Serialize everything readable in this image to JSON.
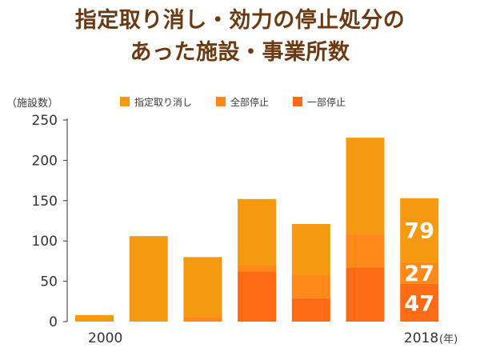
{
  "title": {
    "line1": "指定取り消し・効力の停止処分の",
    "line2": "あった施設・事業所数"
  },
  "colors": {
    "title": "#6b3a12",
    "revocation": "#f59a10",
    "full_suspension": "#ff8a1a",
    "partial_suspension": "#ff6a14",
    "axis": "#333333"
  },
  "legend": [
    {
      "label": "指定取り消し",
      "color": "#f59a10"
    },
    {
      "label": "全部停止",
      "color": "#ff8a1a"
    },
    {
      "label": "一部停止",
      "color": "#ff6a14"
    }
  ],
  "chart_data": {
    "type": "bar",
    "stacked": true,
    "ylabel": "（施設数）",
    "xunit": "(年)",
    "ylim": [
      0,
      250
    ],
    "yticks": [
      0,
      50,
      100,
      150,
      200,
      250
    ],
    "x_tick_labels": {
      "first": "2000",
      "last": "2018"
    },
    "categories": [
      "2000",
      "",
      "",
      "",
      "",
      "",
      "2018"
    ],
    "series": [
      {
        "name": "一部停止",
        "color": "#ff6a14",
        "values": [
          0,
          0,
          0,
          62,
          29,
          67,
          47
        ]
      },
      {
        "name": "全部停止",
        "color": "#ff8a1a",
        "values": [
          0,
          0,
          6,
          8,
          29,
          42,
          27
        ]
      },
      {
        "name": "指定取り消し",
        "color": "#f59a10",
        "values": [
          8,
          106,
          74,
          82,
          63,
          119,
          79
        ]
      }
    ],
    "data_labels": {
      "bar_index": 6,
      "values": [
        "47",
        "27",
        "79"
      ]
    }
  }
}
